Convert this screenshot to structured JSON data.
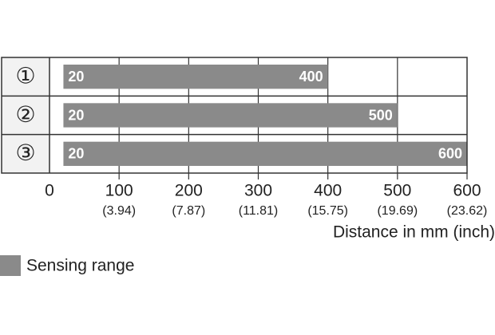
{
  "chart_data": {
    "type": "range-bar",
    "categories": [
      "①",
      "②",
      "③"
    ],
    "series": [
      {
        "name": "Sensing range",
        "color": "#8a8a8a",
        "low": [
          20,
          20,
          20
        ],
        "values": [
          400,
          500,
          600
        ]
      }
    ],
    "xlim": [
      0,
      600
    ],
    "xticks": [
      0,
      100,
      200,
      300,
      400,
      500,
      600
    ],
    "xtick_inch_labels": [
      null,
      "(3.94)",
      "(7.87)",
      "(11.81)",
      "(15.75)",
      "(19.69)",
      "(23.62)"
    ],
    "xlabel": "Distance in mm (inch)",
    "grid": true
  }
}
